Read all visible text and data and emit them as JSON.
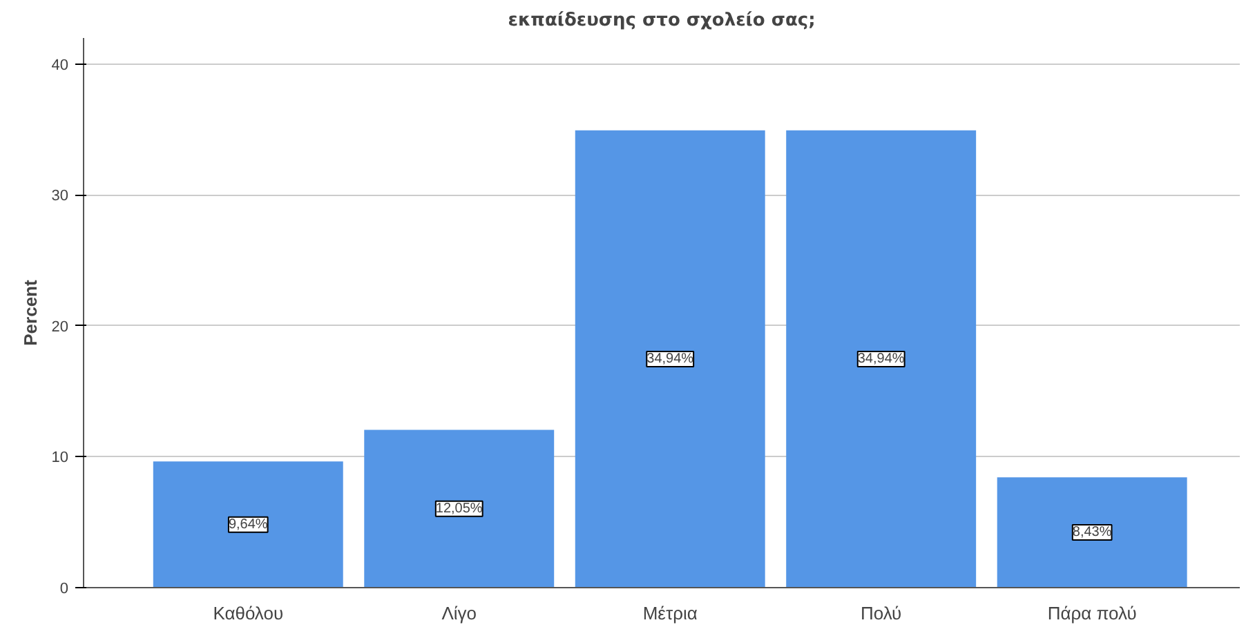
{
  "chart_data": {
    "type": "bar",
    "title": "εκπαίδευσης στο σχολείο σας;",
    "ylabel": "Percent",
    "categories": [
      "Καθόλου",
      "Λίγο",
      "Μέτρια",
      "Πολύ",
      "Πάρα πολύ"
    ],
    "values": [
      9.64,
      12.05,
      34.94,
      34.94,
      8.43
    ],
    "value_labels": [
      "9,64%",
      "12,05%",
      "34,94%",
      "34,94%",
      "8,43%"
    ],
    "color": "#5596e6",
    "ylim": [
      0,
      42
    ],
    "yticks": [
      0,
      10,
      20,
      30,
      40
    ],
    "grid": "y"
  }
}
